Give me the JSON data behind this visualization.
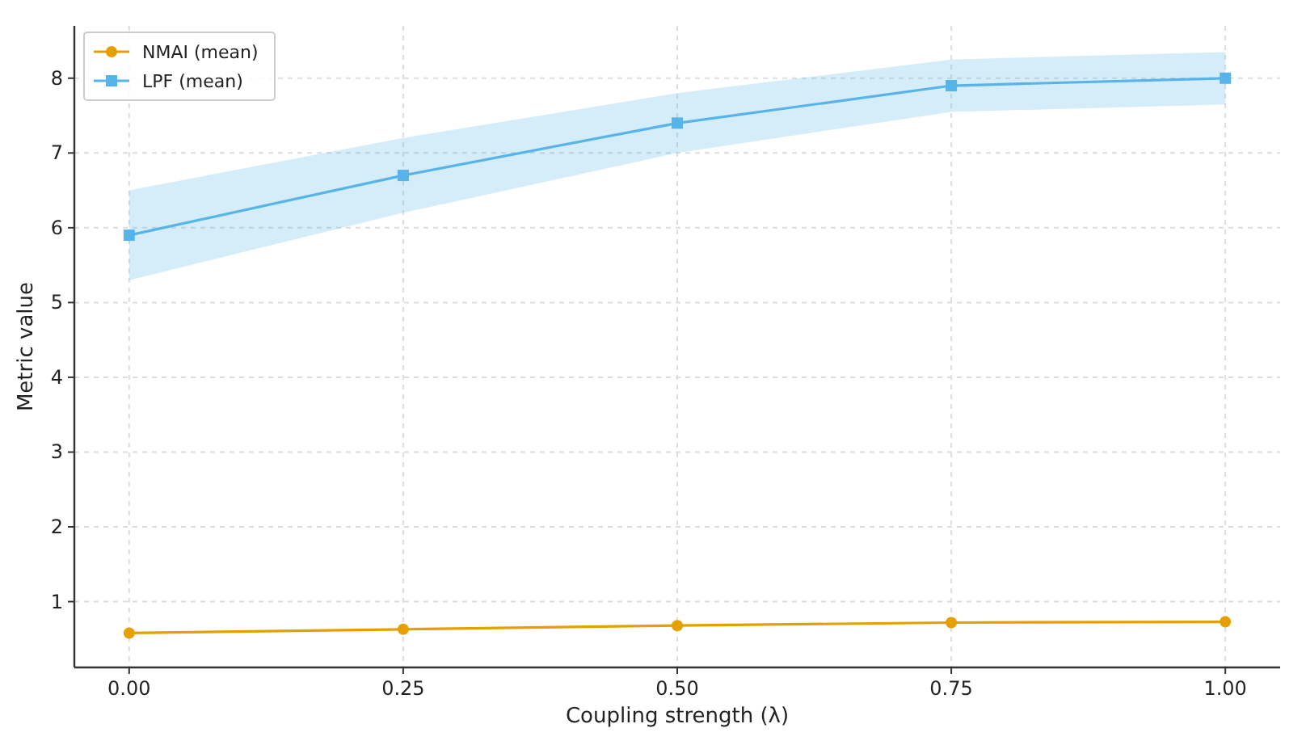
{
  "chart_data": {
    "type": "line",
    "xlabel": "Coupling strength (λ)",
    "ylabel": "Metric value",
    "x": [
      0,
      0.25,
      0.5,
      0.75,
      1.0
    ],
    "series": [
      {
        "name": "NMAI (mean)",
        "color": "#e69f00",
        "marker": "circle",
        "values": [
          0.58,
          0.63,
          0.68,
          0.72,
          0.73
        ]
      },
      {
        "name": "LPF (mean)",
        "color": "#56b4e9",
        "marker": "square",
        "values": [
          5.9,
          6.7,
          7.4,
          7.9,
          8.0
        ],
        "lower": [
          5.3,
          6.2,
          7.0,
          7.55,
          7.65
        ],
        "upper": [
          6.5,
          7.2,
          7.8,
          8.25,
          8.35
        ]
      }
    ],
    "xlim": [
      -0.05,
      1.05
    ],
    "xticks": [
      {
        "value": 0,
        "label": "0.00"
      },
      {
        "value": 0.25,
        "label": "0.25"
      },
      {
        "value": 0.5,
        "label": "0.50"
      },
      {
        "value": 0.75,
        "label": "0.75"
      },
      {
        "value": 1.0,
        "label": "1.00"
      }
    ],
    "ylim": [
      0.12,
      8.7
    ],
    "yticks": [
      1,
      2,
      3,
      4,
      5,
      6,
      7,
      8
    ],
    "grid": true,
    "legend": "top left",
    "line_style": "solid"
  }
}
